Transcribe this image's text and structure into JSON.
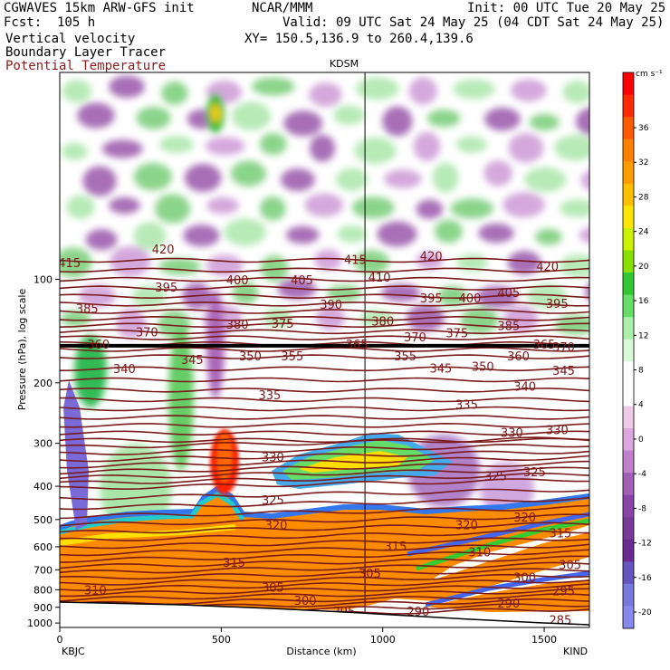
{
  "header": {
    "model": "CGWAVES 15km ARW-GFS init",
    "fcst": "Fcst:  105 h",
    "field1": "Vertical velocity",
    "field2": "Boundary Layer Tracer",
    "field3": "Potential Temperature",
    "center": "NCAR/MMM",
    "init": "Init: 00 UTC Tue 20 May 25",
    "valid": "Valid: 09 UTC Sat 24 May 25 (04 CDT Sat 24 May 25)",
    "xy": "XY= 150.5,136.9 to 260.4,139.6",
    "field3_color": "#8b1a1a"
  },
  "station_top": "KDSM",
  "station_left": "KBJC",
  "station_right": "KIND",
  "colorbar": {
    "unit": "cm s⁻¹",
    "labels": [
      "36",
      "32",
      "28",
      "24",
      "20",
      "16",
      "12",
      "8",
      "4",
      "0",
      "-4",
      "-8",
      "-12",
      "-16",
      "-20"
    ],
    "colors": [
      "#ff0000",
      "#ff2a00",
      "#ff5a00",
      "#ff8000",
      "#ff9c00",
      "#ffc000",
      "#ffe600",
      "#ccf200",
      "#88e000",
      "#33c833",
      "#66dd66",
      "#aaf0aa",
      "#d8f8d8",
      "#ffffff",
      "#ffffff",
      "#eecce8",
      "#dda6dd",
      "#c080cc",
      "#a060b8",
      "#8844a8",
      "#7a3a9a",
      "#6a2a90",
      "#6655c0",
      "#7777dd",
      "#8888ee"
    ]
  },
  "chart_data": {
    "type": "heatmap",
    "xlabel": "Distance (km)",
    "ylabel": "Pressure (hPa), log scale",
    "x_ticks": [
      "0",
      "500",
      "1000",
      "1500"
    ],
    "x_range": [
      0,
      1640
    ],
    "y_ticks": [
      "100",
      "200",
      "300",
      "400",
      "500",
      "600",
      "700",
      "800",
      "900",
      "1000"
    ],
    "y_range_hPa": [
      1030,
      25
    ],
    "vertical_marker_km": 945,
    "theta_labels": [
      {
        "text": "415",
        "x": 30,
        "p": 90
      },
      {
        "text": "420",
        "x": 320,
        "p": 82
      },
      {
        "text": "415",
        "x": 915,
        "p": 88
      },
      {
        "text": "420",
        "x": 1150,
        "p": 86
      },
      {
        "text": "420",
        "x": 1510,
        "p": 92
      },
      {
        "text": "385",
        "x": 85,
        "p": 122
      },
      {
        "text": "395",
        "x": 330,
        "p": 106
      },
      {
        "text": "400",
        "x": 550,
        "p": 101
      },
      {
        "text": "405",
        "x": 750,
        "p": 101
      },
      {
        "text": "410",
        "x": 990,
        "p": 99
      },
      {
        "text": "395",
        "x": 1150,
        "p": 114
      },
      {
        "text": "400",
        "x": 1270,
        "p": 114
      },
      {
        "text": "405",
        "x": 1390,
        "p": 110
      },
      {
        "text": "395",
        "x": 1540,
        "p": 118
      },
      {
        "text": "370",
        "x": 270,
        "p": 143
      },
      {
        "text": "380",
        "x": 550,
        "p": 136
      },
      {
        "text": "375",
        "x": 690,
        "p": 135
      },
      {
        "text": "390",
        "x": 840,
        "p": 119
      },
      {
        "text": "380",
        "x": 1000,
        "p": 133
      },
      {
        "text": "370",
        "x": 1100,
        "p": 148
      },
      {
        "text": "375",
        "x": 1230,
        "p": 144
      },
      {
        "text": "385",
        "x": 1390,
        "p": 137
      },
      {
        "text": "370",
        "x": 1560,
        "p": 158
      },
      {
        "text": "360",
        "x": 120,
        "p": 155
      },
      {
        "text": "365",
        "x": 920,
        "p": 155
      },
      {
        "text": "365",
        "x": 1500,
        "p": 155
      },
      {
        "text": "340",
        "x": 200,
        "p": 183
      },
      {
        "text": "345",
        "x": 410,
        "p": 172
      },
      {
        "text": "350",
        "x": 590,
        "p": 168
      },
      {
        "text": "355",
        "x": 720,
        "p": 168
      },
      {
        "text": "355",
        "x": 1070,
        "p": 168
      },
      {
        "text": "345",
        "x": 1180,
        "p": 182
      },
      {
        "text": "350",
        "x": 1310,
        "p": 180
      },
      {
        "text": "360",
        "x": 1420,
        "p": 168
      },
      {
        "text": "345",
        "x": 1560,
        "p": 185
      },
      {
        "text": "335",
        "x": 650,
        "p": 218
      },
      {
        "text": "340",
        "x": 1440,
        "p": 206
      },
      {
        "text": "335",
        "x": 1260,
        "p": 232
      },
      {
        "text": "330",
        "x": 1400,
        "p": 280
      },
      {
        "text": "330",
        "x": 1540,
        "p": 275
      },
      {
        "text": "330",
        "x": 660,
        "p": 330
      },
      {
        "text": "325",
        "x": 660,
        "p": 440
      },
      {
        "text": "325",
        "x": 1350,
        "p": 375
      },
      {
        "text": "325",
        "x": 1470,
        "p": 365
      },
      {
        "text": "320",
        "x": 670,
        "p": 520
      },
      {
        "text": "320",
        "x": 1260,
        "p": 520
      },
      {
        "text": "320",
        "x": 1440,
        "p": 495
      },
      {
        "text": "315",
        "x": 1040,
        "p": 600
      },
      {
        "text": "315",
        "x": 540,
        "p": 670
      },
      {
        "text": "315",
        "x": 1550,
        "p": 550
      },
      {
        "text": "310",
        "x": 1300,
        "p": 625
      },
      {
        "text": "310",
        "x": 110,
        "p": 805
      },
      {
        "text": "305",
        "x": 960,
        "p": 720
      },
      {
        "text": "305",
        "x": 660,
        "p": 790
      },
      {
        "text": "305",
        "x": 1580,
        "p": 680
      },
      {
        "text": "300",
        "x": 760,
        "p": 865
      },
      {
        "text": "300",
        "x": 1440,
        "p": 740
      },
      {
        "text": "295",
        "x": 880,
        "p": 930
      },
      {
        "text": "295",
        "x": 1560,
        "p": 810
      },
      {
        "text": "290",
        "x": 1110,
        "p": 930
      },
      {
        "text": "290",
        "x": 1390,
        "p": 880
      },
      {
        "text": "285",
        "x": 1550,
        "p": 985
      }
    ]
  }
}
